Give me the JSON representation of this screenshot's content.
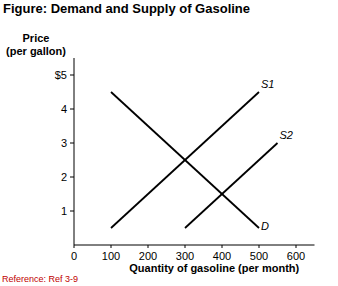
{
  "chart_data": {
    "type": "line",
    "title": "Figure: Demand and Supply of Gasoline",
    "y_label": "Price\n(per gallon)",
    "x_label": "Quantity of gasoline (per month)",
    "footer": "Reference: Ref 3-9",
    "xlim": [
      0,
      650
    ],
    "ylim": [
      0,
      5.5
    ],
    "xticks": [
      0,
      100,
      200,
      300,
      400,
      500,
      600
    ],
    "yticks": [
      1,
      2,
      3,
      4,
      {
        "value": 5,
        "label": "$5"
      }
    ],
    "grid": false,
    "color": "#000000",
    "series": [
      {
        "name": "S1",
        "color": "#000000",
        "x": [
          100,
          500
        ],
        "values": [
          0.5,
          4.5
        ]
      },
      {
        "name": "S2",
        "color": "#000000",
        "x": [
          300,
          550
        ],
        "values": [
          0.5,
          3.0
        ]
      },
      {
        "name": "D",
        "color": "#000000",
        "x": [
          100,
          500
        ],
        "values": [
          4.5,
          0.5
        ]
      }
    ]
  }
}
